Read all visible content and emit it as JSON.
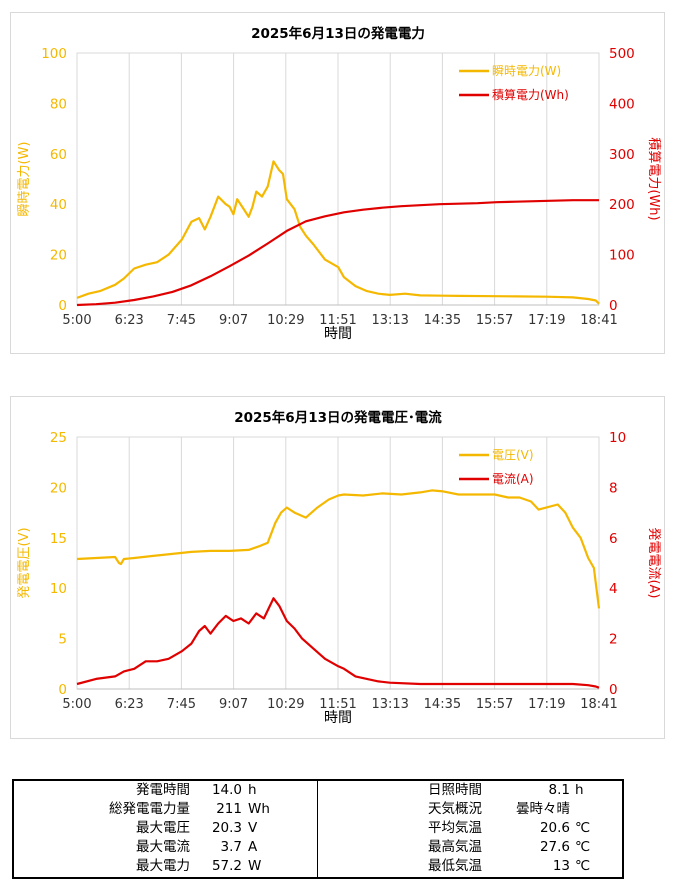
{
  "charts": [
    {
      "title": "2025年6月13日の発電電力",
      "xlabel": "時間",
      "x_ticks": [
        "5:00",
        "6:23",
        "7:45",
        "9:07",
        "10:29",
        "11:51",
        "13:13",
        "14:35",
        "15:57",
        "17:19",
        "18:41"
      ],
      "left_axis": {
        "label": "瞬時電力(W)",
        "ticks": [
          "0",
          "20",
          "40",
          "60",
          "80",
          "100"
        ],
        "color": "#F5B800"
      },
      "right_axis": {
        "label": "積算電力(Wh)",
        "ticks": [
          "0",
          "100",
          "200",
          "300",
          "400",
          "500"
        ],
        "color": "#E00000"
      },
      "legend": [
        "瞬時電力(W)",
        "積算電力(Wh)"
      ]
    },
    {
      "title": "2025年6月13日の発電電圧･電流",
      "xlabel": "時間",
      "x_ticks": [
        "5:00",
        "6:23",
        "7:45",
        "9:07",
        "10:29",
        "11:51",
        "13:13",
        "14:35",
        "15:57",
        "17:19",
        "18:41"
      ],
      "left_axis": {
        "label": "発電電圧(V)",
        "ticks": [
          "0",
          "5",
          "10",
          "15",
          "20",
          "25"
        ],
        "color": "#F5B800"
      },
      "right_axis": {
        "label": "発電電流(A)",
        "ticks": [
          "0",
          "2",
          "4",
          "6",
          "8",
          "10"
        ],
        "color": "#E00000"
      },
      "legend": [
        "電圧(V)",
        "電流(A)"
      ]
    }
  ],
  "chart_data": [
    {
      "type": "line",
      "title": "2025年6月13日の発電電力",
      "xlabel": "時間",
      "x_range_hours": [
        5.0,
        18.683
      ],
      "series": [
        {
          "name": "瞬時電力(W)",
          "axis": "left",
          "ylim": [
            0,
            100
          ],
          "color": "#F5B800",
          "x": [
            5.0,
            5.3,
            5.6,
            6.0,
            6.23,
            6.5,
            6.8,
            7.1,
            7.4,
            7.75,
            8.0,
            8.2,
            8.35,
            8.5,
            8.7,
            8.9,
            9.0,
            9.1,
            9.2,
            9.35,
            9.5,
            9.6,
            9.7,
            9.85,
            10.0,
            10.15,
            10.3,
            10.4,
            10.5,
            10.7,
            10.85,
            11.0,
            11.2,
            11.5,
            11.85,
            12.0,
            12.3,
            12.6,
            12.9,
            13.2,
            13.6,
            14.0,
            14.6,
            15.0,
            15.95,
            16.5,
            17.3,
            18.0,
            18.4,
            18.6,
            18.683
          ],
          "values": [
            2.8,
            4.5,
            5.5,
            8.0,
            10.5,
            14.5,
            16.0,
            17.0,
            20.0,
            26.0,
            33.0,
            34.5,
            30.0,
            35.0,
            43.0,
            40.0,
            39.0,
            36.0,
            42.0,
            38.5,
            35.0,
            39.0,
            45.0,
            43.0,
            47.0,
            57.0,
            53.5,
            52.0,
            42.0,
            38.0,
            31.0,
            27.5,
            24.0,
            18.0,
            15.0,
            11.0,
            7.5,
            5.5,
            4.5,
            4.0,
            4.5,
            3.8,
            3.7,
            3.6,
            3.5,
            3.4,
            3.3,
            3.0,
            2.4,
            1.8,
            0.5
          ]
        },
        {
          "name": "積算電力(Wh)",
          "axis": "right",
          "ylim": [
            0,
            500
          ],
          "color": "#E00000",
          "x": [
            5.0,
            5.5,
            6.0,
            6.5,
            7.0,
            7.5,
            8.0,
            8.5,
            9.0,
            9.5,
            10.0,
            10.5,
            11.0,
            11.5,
            12.0,
            12.5,
            13.0,
            13.5,
            14.0,
            14.5,
            15.0,
            15.5,
            16.0,
            16.5,
            17.0,
            17.5,
            18.0,
            18.5,
            18.683
          ],
          "values": [
            0,
            1.5,
            4.5,
            10,
            17,
            26,
            39,
            57,
            77,
            98,
            122,
            147,
            166,
            176,
            184,
            189,
            193,
            196,
            198,
            200,
            201,
            202,
            204,
            205,
            206,
            207,
            208,
            208,
            208
          ]
        }
      ]
    },
    {
      "type": "line",
      "title": "2025年6月13日の発電電圧･電流",
      "xlabel": "時間",
      "x_range_hours": [
        5.0,
        18.683
      ],
      "series": [
        {
          "name": "電圧(V)",
          "axis": "left",
          "ylim": [
            0,
            25
          ],
          "color": "#F5B800",
          "x": [
            5.0,
            5.5,
            6.0,
            6.1,
            6.15,
            6.23,
            6.5,
            7.0,
            7.5,
            8.0,
            8.5,
            9.0,
            9.5,
            9.8,
            10.0,
            10.2,
            10.35,
            10.5,
            10.7,
            11.0,
            11.3,
            11.6,
            11.85,
            12.0,
            12.5,
            13.0,
            13.5,
            14.0,
            14.3,
            14.6,
            15.0,
            15.5,
            15.95,
            16.3,
            16.6,
            16.9,
            17.1,
            17.3,
            17.6,
            17.8,
            18.0,
            18.2,
            18.4,
            18.55,
            18.6,
            18.683
          ],
          "values": [
            12.9,
            13.0,
            13.1,
            12.5,
            12.4,
            12.9,
            13.0,
            13.2,
            13.4,
            13.6,
            13.7,
            13.7,
            13.8,
            14.2,
            14.5,
            16.5,
            17.5,
            18.0,
            17.5,
            17.0,
            18.0,
            18.8,
            19.2,
            19.3,
            19.2,
            19.4,
            19.3,
            19.5,
            19.7,
            19.6,
            19.3,
            19.3,
            19.3,
            19.0,
            19.0,
            18.6,
            17.8,
            18.0,
            18.3,
            17.5,
            16.0,
            15.0,
            13.0,
            12.0,
            10.5,
            8.0
          ]
        },
        {
          "name": "電流(A)",
          "axis": "right",
          "ylim": [
            0,
            10
          ],
          "color": "#E00000",
          "x": [
            5.0,
            5.5,
            6.0,
            6.23,
            6.5,
            6.8,
            7.1,
            7.4,
            7.75,
            8.0,
            8.2,
            8.35,
            8.5,
            8.7,
            8.9,
            9.1,
            9.3,
            9.5,
            9.7,
            9.9,
            10.15,
            10.3,
            10.5,
            10.7,
            10.9,
            11.2,
            11.5,
            11.85,
            12.0,
            12.3,
            12.6,
            12.9,
            13.2,
            14.0,
            15.0,
            15.95,
            17.3,
            18.0,
            18.4,
            18.6,
            18.683
          ],
          "values": [
            0.2,
            0.4,
            0.5,
            0.7,
            0.8,
            1.1,
            1.1,
            1.2,
            1.5,
            1.8,
            2.3,
            2.5,
            2.2,
            2.6,
            2.9,
            2.7,
            2.8,
            2.6,
            3.0,
            2.8,
            3.6,
            3.3,
            2.7,
            2.4,
            2.0,
            1.6,
            1.2,
            0.9,
            0.8,
            0.5,
            0.4,
            0.3,
            0.25,
            0.2,
            0.2,
            0.2,
            0.2,
            0.2,
            0.15,
            0.1,
            0.05
          ]
        }
      ]
    }
  ],
  "summary": {
    "left": [
      {
        "label": "発電時間",
        "value": "14.0",
        "unit": "h"
      },
      {
        "label": "総発電電力量",
        "value": "211",
        "unit": "Wh"
      },
      {
        "label": "最大電圧",
        "value": "20.3",
        "unit": "V"
      },
      {
        "label": "最大電流",
        "value": "3.7",
        "unit": "A"
      },
      {
        "label": "最大電力",
        "value": "57.2",
        "unit": "W"
      }
    ],
    "right": [
      {
        "label": "日照時間",
        "value": "8.1",
        "unit": "h"
      },
      {
        "label": "天気概況",
        "value": "曇時々晴",
        "unit": ""
      },
      {
        "label": "平均気温",
        "value": "20.6",
        "unit": "℃"
      },
      {
        "label": "最高気温",
        "value": "27.6",
        "unit": "℃"
      },
      {
        "label": "最低気温",
        "value": "13",
        "unit": "℃"
      }
    ]
  }
}
